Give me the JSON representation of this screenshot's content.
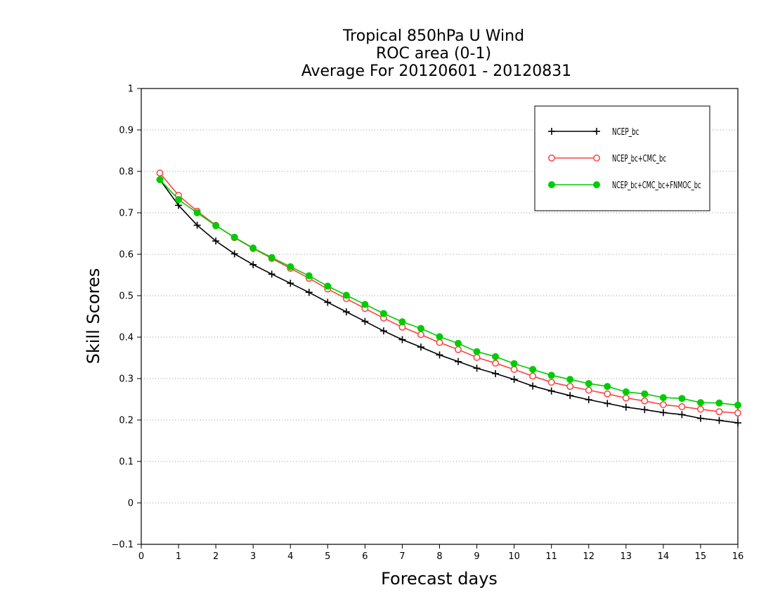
{
  "chart_data": {
    "type": "line",
    "title_lines": [
      "Tropical 850hPa U Wind",
      "ROC area (0-1)",
      "Average For 20120601 - 20120831"
    ],
    "xlabel": "Forecast days",
    "ylabel": "Skill Scores",
    "xlim": [
      0,
      16
    ],
    "ylim": [
      -0.1,
      1
    ],
    "xticks": [
      0,
      1,
      2,
      3,
      4,
      5,
      6,
      7,
      8,
      9,
      10,
      11,
      12,
      13,
      14,
      15,
      16
    ],
    "xtick_labels": [
      "0",
      "1",
      "2",
      "3",
      "4",
      "5",
      "6",
      "7",
      "8",
      "9",
      "10",
      "11",
      "12",
      "13",
      "14",
      "15",
      "16"
    ],
    "yticks": [
      -0.1,
      0,
      0.1,
      0.2,
      0.3,
      0.4,
      0.5,
      0.6,
      0.7,
      0.8,
      0.9,
      1
    ],
    "ytick_labels": [
      "−0.1",
      "0",
      "0.1",
      "0.2",
      "0.3",
      "0.4",
      "0.5",
      "0.6",
      "0.7",
      "0.8",
      "0.9",
      "1"
    ],
    "grid": "horizontal dotted",
    "legend_position": "top-right",
    "x": [
      0.5,
      1,
      1.5,
      2,
      2.5,
      3,
      3.5,
      4,
      4.5,
      5,
      5.5,
      6,
      6.5,
      7,
      7.5,
      8,
      8.5,
      9,
      9.5,
      10,
      10.5,
      11,
      11.5,
      12,
      12.5,
      13,
      13.5,
      14,
      14.5,
      15,
      15.5,
      16
    ],
    "series": [
      {
        "name": "NCEP_bc",
        "color": "#000000",
        "marker": "plus",
        "values": [
          0.78,
          0.718,
          0.67,
          0.632,
          0.601,
          0.575,
          0.552,
          0.53,
          0.508,
          0.484,
          0.461,
          0.438,
          0.415,
          0.394,
          0.376,
          0.357,
          0.341,
          0.325,
          0.312,
          0.298,
          0.282,
          0.27,
          0.259,
          0.249,
          0.24,
          0.231,
          0.225,
          0.218,
          0.213,
          0.204,
          0.199,
          0.193
        ]
      },
      {
        "name": "NCEP_bc+CMC_bc",
        "color": "#ff4040",
        "marker": "open-circle",
        "values": [
          0.796,
          0.742,
          0.704,
          0.67,
          0.64,
          0.614,
          0.59,
          0.566,
          0.542,
          0.516,
          0.493,
          0.469,
          0.446,
          0.424,
          0.406,
          0.387,
          0.37,
          0.351,
          0.337,
          0.322,
          0.306,
          0.291,
          0.281,
          0.272,
          0.263,
          0.253,
          0.246,
          0.237,
          0.232,
          0.226,
          0.22,
          0.217
        ]
      },
      {
        "name": "NCEP_bc+CMC_bc+FNMOC_bc",
        "color": "#00cc00",
        "marker": "filled-circle",
        "values": [
          0.78,
          0.732,
          0.7,
          0.669,
          0.641,
          0.615,
          0.592,
          0.57,
          0.548,
          0.523,
          0.501,
          0.479,
          0.457,
          0.437,
          0.421,
          0.401,
          0.385,
          0.365,
          0.353,
          0.336,
          0.322,
          0.308,
          0.298,
          0.288,
          0.281,
          0.268,
          0.263,
          0.254,
          0.252,
          0.242,
          0.241,
          0.236
        ]
      }
    ]
  }
}
